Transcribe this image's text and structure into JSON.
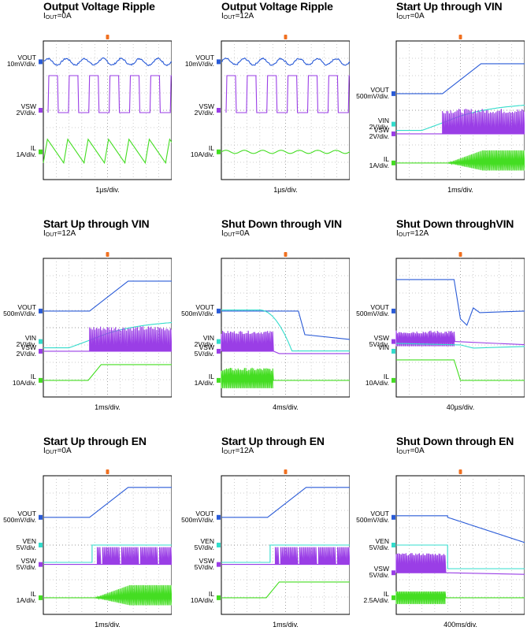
{
  "colors": {
    "vout": "#2a5bd7",
    "vsw": "#9a3ee6",
    "il": "#44dd22",
    "vin": "#33dccc",
    "ven": "#33dccc",
    "trigger": "#f07020",
    "grid": "#999999"
  },
  "chart_data": [
    {
      "type": "line",
      "title": "Output Voltage Ripple",
      "condition": {
        "prefix": "I",
        "sub": "OUT",
        "suffix": "=0A"
      },
      "timebase": "1µs/div.",
      "series": [
        {
          "key": "vout",
          "name": "VOUT",
          "scale": "10mV/div.",
          "wave": "ripple",
          "level": 0.85
        },
        {
          "key": "vsw",
          "name": "VSW",
          "scale": "2V/div.",
          "wave": "pulse6",
          "level": 0.5
        },
        {
          "key": "il",
          "name": "IL",
          "scale": "1A/div.",
          "wave": "saw",
          "level": 0.2
        }
      ]
    },
    {
      "type": "line",
      "title": "Output Voltage Ripple",
      "condition": {
        "prefix": "I",
        "sub": "OUT",
        "suffix": "=12A"
      },
      "timebase": "1µs/div.",
      "series": [
        {
          "key": "vout",
          "name": "VOUT",
          "scale": "10mV/div.",
          "wave": "ripple",
          "level": 0.85
        },
        {
          "key": "vsw",
          "name": "VSW",
          "scale": "2V/div.",
          "wave": "pulse6",
          "level": 0.5
        },
        {
          "key": "il",
          "name": "IL",
          "scale": "10A/div.",
          "wave": "flatwave",
          "level": 0.2
        }
      ]
    },
    {
      "type": "line",
      "title": "Start Up through VIN",
      "condition": {
        "prefix": "I",
        "sub": "OUT",
        "suffix": "=0A"
      },
      "timebase": "1ms/div.",
      "series": [
        {
          "key": "vout",
          "name": "VOUT",
          "scale": "500mV/div.",
          "wave": "ramp",
          "level": 0.62
        },
        {
          "key": "vin",
          "name": "VIN",
          "scale": "2V/div.",
          "wave": "vincurve",
          "level": 0.4
        },
        {
          "key": "vsw",
          "name": "VSW",
          "scale": "2V/div.",
          "wave": "burst",
          "level": 0.33
        },
        {
          "key": "il",
          "name": "IL",
          "scale": "1A/div.",
          "wave": "burstLow",
          "level": 0.12
        }
      ]
    },
    {
      "type": "line",
      "title": "Start Up through VIN",
      "condition": {
        "prefix": "I",
        "sub": "OUT",
        "suffix": "=12A"
      },
      "timebase": "1ms/div.",
      "series": [
        {
          "key": "vout",
          "name": "VOUT",
          "scale": "500mV/div.",
          "wave": "ramp",
          "level": 0.62
        },
        {
          "key": "vin",
          "name": "VIN",
          "scale": "2V/div.",
          "wave": "vincurve",
          "level": 0.4
        },
        {
          "key": "vsw",
          "name": "VSW",
          "scale": "2V/div.",
          "wave": "burst",
          "level": 0.33
        },
        {
          "key": "il",
          "name": "IL",
          "scale": "10A/div.",
          "wave": "stepup",
          "level": 0.12
        }
      ]
    },
    {
      "type": "line",
      "title": "Shut Down through VIN",
      "condition": {
        "prefix": "I",
        "sub": "OUT",
        "suffix": "=0A"
      },
      "timebase": "4ms/div.",
      "series": [
        {
          "key": "vout",
          "name": "VOUT",
          "scale": "500mV/div.",
          "wave": "falldrop",
          "level": 0.62
        },
        {
          "key": "vin",
          "name": "VIN",
          "scale": "2V/div.",
          "wave": "vinfall",
          "level": 0.4
        },
        {
          "key": "vsw",
          "name": "VSW",
          "scale": "5V/div.",
          "wave": "burstEnd",
          "level": 0.33
        },
        {
          "key": "il",
          "name": "IL",
          "scale": "1A/div.",
          "wave": "burstEndLow",
          "level": 0.12
        }
      ]
    },
    {
      "type": "line",
      "title": "Shut Down throughVIN",
      "condition": {
        "prefix": "I",
        "sub": "OUT",
        "suffix": "=12A"
      },
      "timebase": "40µs/div.",
      "series": [
        {
          "key": "vout",
          "name": "VOUT",
          "scale": "500mV/div.",
          "wave": "dip",
          "level": 0.62
        },
        {
          "key": "vsw",
          "name": "VSW",
          "scale": "5V/div.",
          "wave": "burstEndShort",
          "level": 0.4
        },
        {
          "key": "vin",
          "name": "VIN",
          "scale": "",
          "wave": "vinShort",
          "level": 0.33
        },
        {
          "key": "il",
          "name": "IL",
          "scale": "10A/div.",
          "wave": "dropShort",
          "level": 0.12
        }
      ]
    },
    {
      "type": "line",
      "title": "Start Up through EN",
      "condition": {
        "prefix": "I",
        "sub": "OUT",
        "suffix": "=0A"
      },
      "timebase": "1ms/div.",
      "series": [
        {
          "key": "vout",
          "name": "VOUT",
          "scale": "500mV/div.",
          "wave": "ramp",
          "level": 0.7
        },
        {
          "key": "ven",
          "name": "VEN",
          "scale": "5V/div.",
          "wave": "enstep",
          "level": 0.5
        },
        {
          "key": "vsw",
          "name": "VSW",
          "scale": "5V/div.",
          "wave": "burstGap",
          "level": 0.36
        },
        {
          "key": "il",
          "name": "IL",
          "scale": "1A/div.",
          "wave": "burstLow",
          "level": 0.12
        }
      ]
    },
    {
      "type": "line",
      "title": "Start Up through EN",
      "condition": {
        "prefix": "I",
        "sub": "OUT",
        "suffix": "=12A"
      },
      "timebase": "1ms/div.",
      "series": [
        {
          "key": "vout",
          "name": "VOUT",
          "scale": "500mV/div.",
          "wave": "ramp",
          "level": 0.7
        },
        {
          "key": "ven",
          "name": "VEN",
          "scale": "5V/div.",
          "wave": "enstep",
          "level": 0.5
        },
        {
          "key": "vsw",
          "name": "VSW",
          "scale": "5V/div.",
          "wave": "burstGap",
          "level": 0.36
        },
        {
          "key": "il",
          "name": "IL",
          "scale": "10A/div.",
          "wave": "stepup",
          "level": 0.12
        }
      ]
    },
    {
      "type": "line",
      "title": "Shut Down through EN",
      "condition": {
        "prefix": "I",
        "sub": "OUT",
        "suffix": "=0A"
      },
      "timebase": "400ms/div.",
      "series": [
        {
          "key": "vout",
          "name": "VOUT",
          "scale": "500mV/div.",
          "wave": "slowdecay",
          "level": 0.7
        },
        {
          "key": "ven",
          "name": "VEN",
          "scale": "5V/div.",
          "wave": "enfall",
          "level": 0.5
        },
        {
          "key": "vsw",
          "name": "VSW",
          "scale": "5V/div.",
          "wave": "burstEndSlow",
          "level": 0.3
        },
        {
          "key": "il",
          "name": "IL",
          "scale": "2.5A/div.",
          "wave": "burstEndSlowLow",
          "level": 0.12
        }
      ]
    }
  ]
}
